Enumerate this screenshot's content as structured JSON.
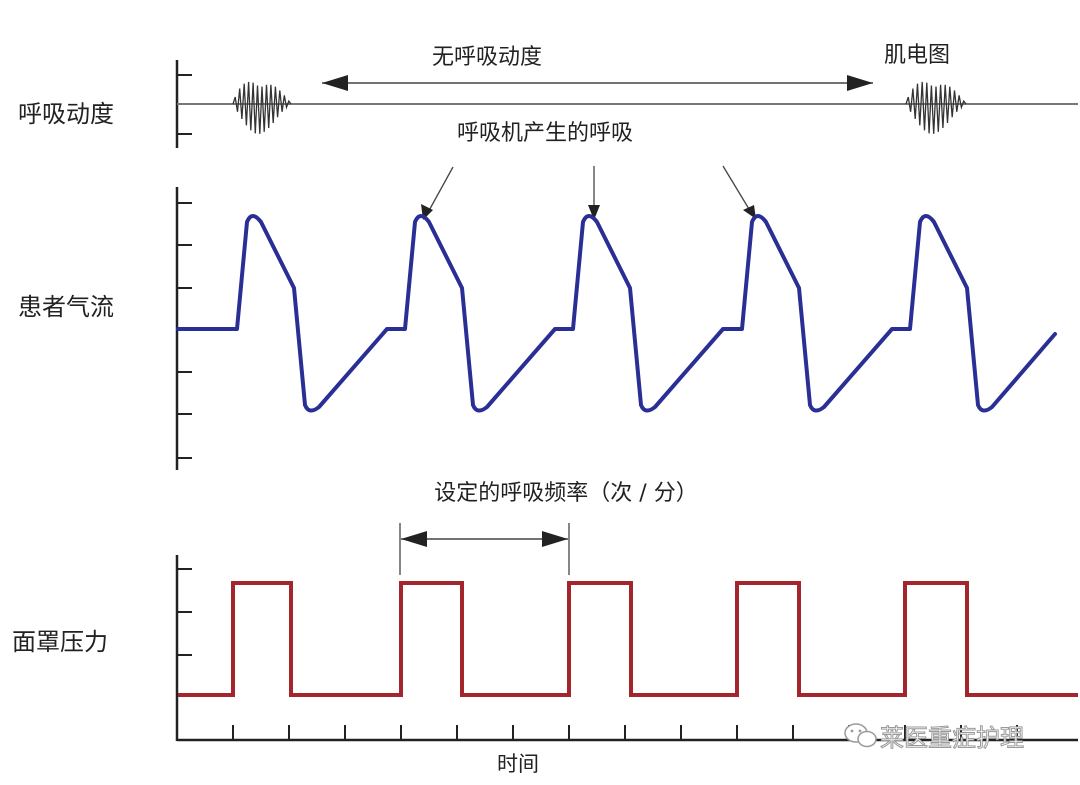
{
  "rows": [
    {
      "id": "resp",
      "label": "呼吸动度"
    },
    {
      "id": "flow",
      "label": "患者气流"
    },
    {
      "id": "mask",
      "label": "面罩压力"
    }
  ],
  "annotations": {
    "no_effort": "无呼吸动度",
    "emg": "肌电图",
    "ventilator_breath": "呼吸机产生的呼吸",
    "set_rate": "设定的呼吸频率（次 / 分）"
  },
  "x_axis_label": "时间",
  "watermark": "莱医重症护理",
  "colors": {
    "flow": "#2a2f95",
    "pressure": "#a3262c",
    "axis": "#222222",
    "arrow": "#333333"
  },
  "icons": [
    "wechat-icon"
  ]
}
